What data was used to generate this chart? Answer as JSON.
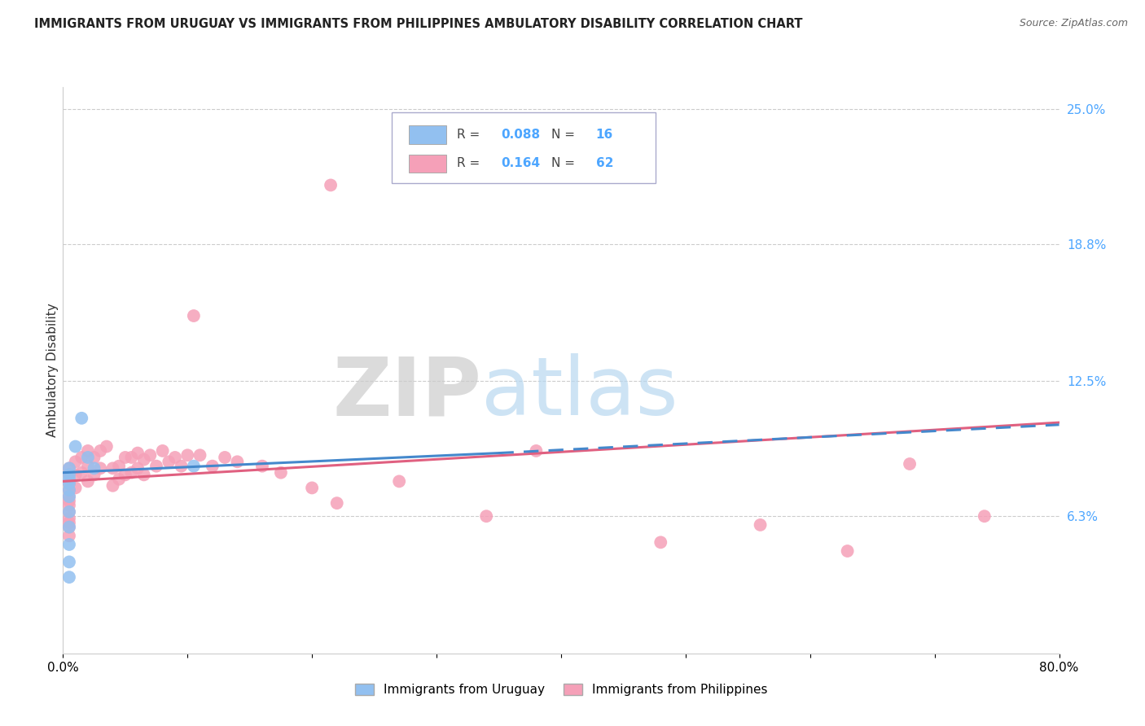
{
  "title": "IMMIGRANTS FROM URUGUAY VS IMMIGRANTS FROM PHILIPPINES AMBULATORY DISABILITY CORRELATION CHART",
  "source": "Source: ZipAtlas.com",
  "ylabel": "Ambulatory Disability",
  "xlim": [
    0.0,
    0.8
  ],
  "ylim": [
    0.0,
    0.26
  ],
  "yticks_right": [
    0.063,
    0.125,
    0.188,
    0.25
  ],
  "yticklabels_right": [
    "6.3%",
    "12.5%",
    "18.8%",
    "25.0%"
  ],
  "legend_R_uru": "0.088",
  "legend_N_uru": "16",
  "legend_R_phi": "0.164",
  "legend_N_phi": "62",
  "uruguay_color": "#92c0f0",
  "philippines_color": "#f5a0b8",
  "uruguay_trend_color": "#4488cc",
  "philippines_trend_color": "#e06080",
  "uruguay_scatter_x": [
    0.005,
    0.005,
    0.005,
    0.005,
    0.005,
    0.005,
    0.005,
    0.005,
    0.005,
    0.01,
    0.015,
    0.02,
    0.025,
    0.105,
    0.005,
    0.005
  ],
  "uruguay_scatter_y": [
    0.085,
    0.082,
    0.08,
    0.078,
    0.075,
    0.072,
    0.065,
    0.058,
    0.05,
    0.095,
    0.108,
    0.09,
    0.085,
    0.086,
    0.042,
    0.035
  ],
  "philippines_scatter_x": [
    0.005,
    0.005,
    0.005,
    0.005,
    0.005,
    0.005,
    0.005,
    0.005,
    0.005,
    0.005,
    0.005,
    0.005,
    0.01,
    0.01,
    0.01,
    0.015,
    0.015,
    0.02,
    0.02,
    0.02,
    0.025,
    0.025,
    0.03,
    0.03,
    0.035,
    0.04,
    0.04,
    0.045,
    0.045,
    0.05,
    0.05,
    0.055,
    0.055,
    0.06,
    0.06,
    0.065,
    0.065,
    0.07,
    0.075,
    0.08,
    0.085,
    0.09,
    0.095,
    0.1,
    0.105,
    0.11,
    0.12,
    0.13,
    0.14,
    0.16,
    0.175,
    0.2,
    0.22,
    0.27,
    0.34,
    0.38,
    0.215,
    0.48,
    0.56,
    0.63,
    0.68,
    0.74
  ],
  "philippines_scatter_y": [
    0.085,
    0.082,
    0.078,
    0.075,
    0.072,
    0.07,
    0.068,
    0.065,
    0.062,
    0.06,
    0.058,
    0.054,
    0.088,
    0.082,
    0.076,
    0.09,
    0.083,
    0.093,
    0.086,
    0.079,
    0.09,
    0.082,
    0.093,
    0.085,
    0.095,
    0.085,
    0.077,
    0.086,
    0.08,
    0.09,
    0.082,
    0.09,
    0.083,
    0.092,
    0.085,
    0.089,
    0.082,
    0.091,
    0.086,
    0.093,
    0.088,
    0.09,
    0.086,
    0.091,
    0.155,
    0.091,
    0.086,
    0.09,
    0.088,
    0.086,
    0.083,
    0.076,
    0.069,
    0.079,
    0.063,
    0.093,
    0.215,
    0.051,
    0.059,
    0.047,
    0.087,
    0.063
  ],
  "watermark_zip": "ZIP",
  "watermark_atlas": "atlas",
  "background_color": "#ffffff",
  "grid_color": "#cccccc",
  "title_fontsize": 10.5,
  "source_fontsize": 9,
  "tick_fontsize": 11,
  "legend_fontsize": 11,
  "ylabel_fontsize": 11
}
